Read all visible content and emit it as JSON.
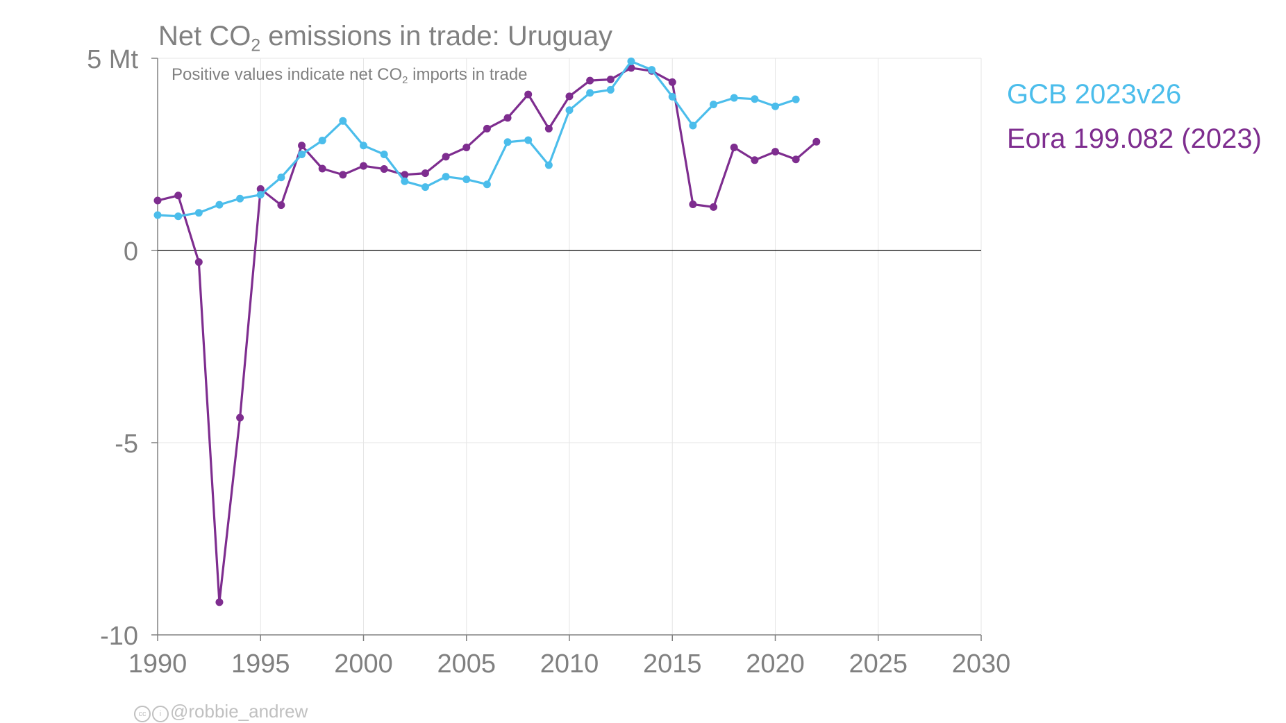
{
  "title": {
    "prefix": "Net CO",
    "sub": "2",
    "suffix": " emissions in trade: Uruguay"
  },
  "subtitle": {
    "prefix": "Positive values indicate net CO",
    "sub": "2",
    "suffix": " imports in trade"
  },
  "credit": {
    "handle": "@robbie_andrew"
  },
  "chart_data": {
    "type": "line",
    "xlim": [
      1990,
      2030
    ],
    "ylim": [
      -10,
      5
    ],
    "x_ticks": [
      1990,
      1995,
      2000,
      2005,
      2010,
      2015,
      2020,
      2025,
      2030
    ],
    "y_ticks": [
      5,
      0,
      -5,
      -10
    ],
    "y_tick_labels": [
      "5 Mt",
      "0",
      "-5",
      "-10"
    ],
    "grid": true,
    "legend_position": "right",
    "series": [
      {
        "name": "GCB 2023v26",
        "color": "#4BBDEB",
        "x": [
          1990,
          1991,
          1992,
          1993,
          1994,
          1995,
          1996,
          1997,
          1998,
          1999,
          2000,
          2001,
          2002,
          2003,
          2004,
          2005,
          2006,
          2007,
          2008,
          2009,
          2010,
          2011,
          2012,
          2013,
          2014,
          2015,
          2016,
          2017,
          2018,
          2019,
          2020,
          2021
        ],
        "y": [
          0.92,
          0.89,
          0.98,
          1.19,
          1.35,
          1.45,
          1.9,
          2.5,
          2.86,
          3.37,
          2.73,
          2.5,
          1.8,
          1.65,
          1.92,
          1.85,
          1.72,
          2.82,
          2.87,
          2.22,
          3.65,
          4.1,
          4.18,
          4.92,
          4.7,
          4.0,
          3.25,
          3.8,
          3.97,
          3.94,
          3.75,
          3.93
        ]
      },
      {
        "name": "Eora 199.082 (2023)",
        "color": "#7E2D8F",
        "x": [
          1990,
          1991,
          1992,
          1993,
          1994,
          1995,
          1996,
          1997,
          1998,
          1999,
          2000,
          2001,
          2002,
          2003,
          2004,
          2005,
          2006,
          2007,
          2008,
          2009,
          2010,
          2011,
          2012,
          2013,
          2014,
          2015,
          2016,
          2017,
          2018,
          2019,
          2020,
          2021,
          2022
        ],
        "y": [
          1.3,
          1.43,
          -0.3,
          -9.15,
          -4.35,
          1.6,
          1.18,
          2.73,
          2.13,
          1.97,
          2.2,
          2.12,
          1.97,
          2.01,
          2.44,
          2.68,
          3.17,
          3.45,
          4.06,
          3.17,
          4.01,
          4.42,
          4.45,
          4.75,
          4.67,
          4.38,
          1.2,
          1.13,
          2.68,
          2.35,
          2.57,
          2.37,
          2.83
        ]
      }
    ]
  }
}
